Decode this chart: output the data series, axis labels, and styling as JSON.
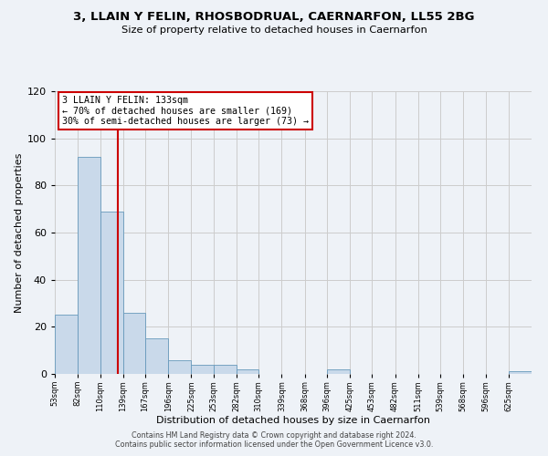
{
  "title": "3, LLAIN Y FELIN, RHOSBODRUAL, CAERNARFON, LL55 2BG",
  "subtitle": "Size of property relative to detached houses in Caernarfon",
  "xlabel": "Distribution of detached houses by size in Caernarfon",
  "ylabel": "Number of detached properties",
  "bar_color": "#c9d9ea",
  "bar_edge_color": "#6699bb",
  "vline_x": 133,
  "vline_color": "#cc0000",
  "ylim": [
    0,
    120
  ],
  "yticks": [
    0,
    20,
    40,
    60,
    80,
    100,
    120
  ],
  "annotation_text": "3 LLAIN Y FELIN: 133sqm\n← 70% of detached houses are smaller (169)\n30% of semi-detached houses are larger (73) →",
  "annotation_box_color": "#ffffff",
  "annotation_box_edge": "#cc0000",
  "footer1": "Contains HM Land Registry data © Crown copyright and database right 2024.",
  "footer2": "Contains public sector information licensed under the Open Government Licence v3.0.",
  "background_color": "#eef2f7",
  "grid_color": "#cccccc",
  "x_bin_edges": [
    53,
    82,
    110,
    139,
    167,
    196,
    225,
    253,
    282,
    310,
    339,
    368,
    396,
    425,
    453,
    482,
    511,
    539,
    568,
    596,
    625
  ],
  "all_bar_heights": [
    25,
    92,
    69,
    26,
    15,
    6,
    4,
    4,
    2,
    0,
    0,
    0,
    2,
    0,
    0,
    0,
    0,
    0,
    0,
    0,
    1
  ],
  "tick_labels": [
    "53sqm",
    "82sqm",
    "110sqm",
    "139sqm",
    "167sqm",
    "196sqm",
    "225sqm",
    "253sqm",
    "282sqm",
    "310sqm",
    "339sqm",
    "368sqm",
    "396sqm",
    "425sqm",
    "453sqm",
    "482sqm",
    "511sqm",
    "539sqm",
    "568sqm",
    "596sqm",
    "625sqm"
  ]
}
